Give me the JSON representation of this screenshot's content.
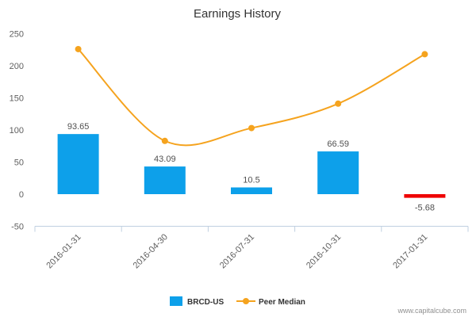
{
  "chart_data": {
    "type": "bar",
    "title": "Earnings History",
    "categories": [
      "2016-01-31",
      "2016-04-30",
      "2016-07-31",
      "2016-10-31",
      "2017-01-31"
    ],
    "ylim": [
      -50,
      250
    ],
    "yticks": [
      -50,
      0,
      50,
      100,
      150,
      200,
      250
    ],
    "xlabel": "",
    "ylabel": "",
    "grid": false,
    "legend_position": "bottom",
    "series": [
      {
        "name": "BRCD-US",
        "type": "bar",
        "values": [
          93.65,
          43.09,
          10.5,
          66.59,
          -5.68
        ],
        "labels": [
          "93.65",
          "43.09",
          "10.5",
          "66.59",
          "-5.68"
        ],
        "color": "#0da0ea",
        "negative_color": "#ee0000"
      },
      {
        "name": "Peer Median",
        "type": "line",
        "values": [
          226,
          83,
          103,
          141,
          218
        ],
        "color": "#f5a31e"
      }
    ]
  },
  "credit": "www.capitalcube.com"
}
